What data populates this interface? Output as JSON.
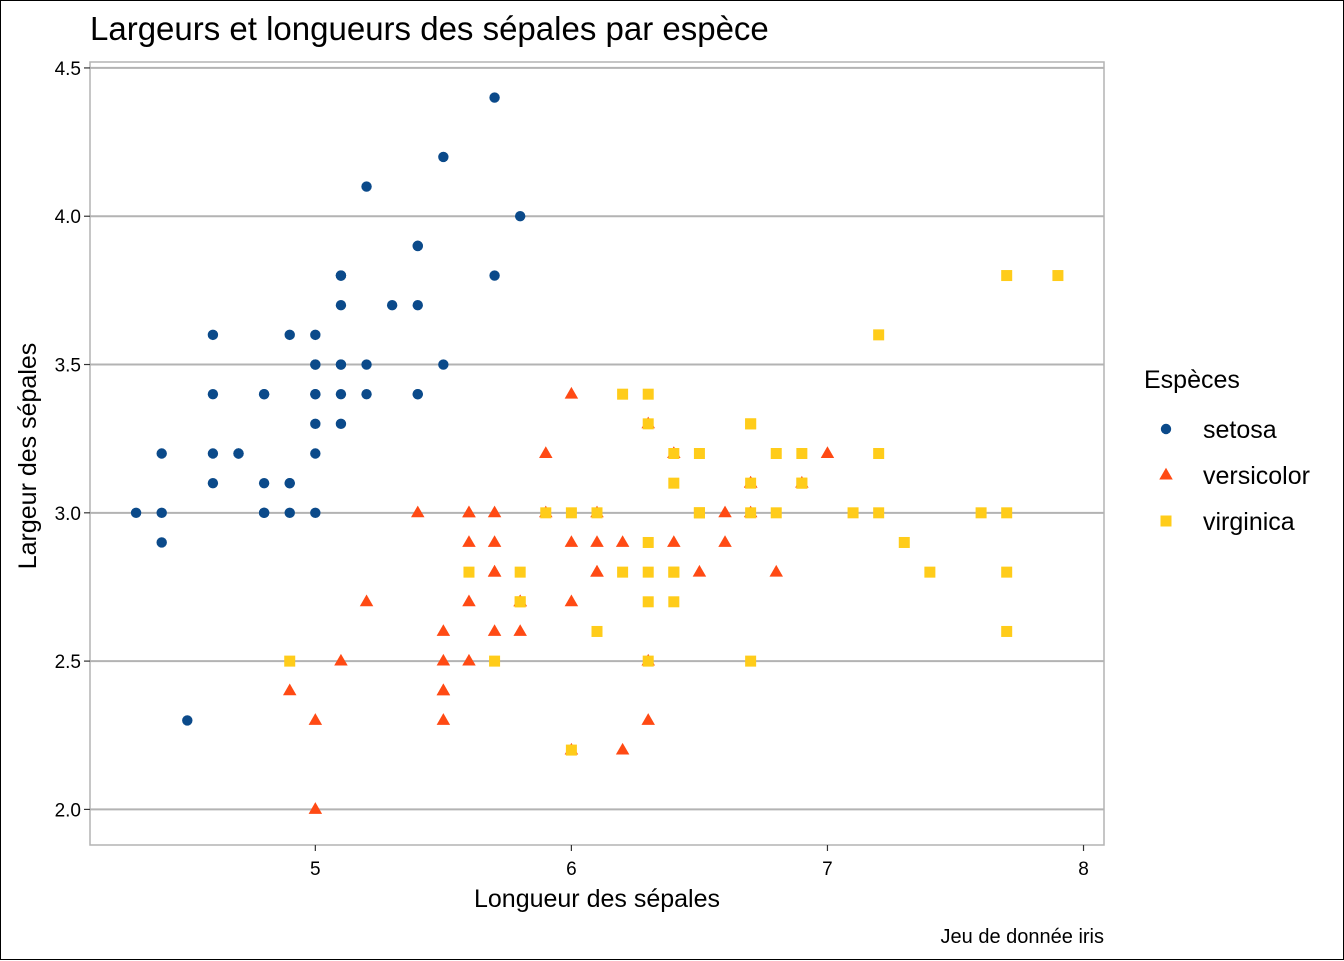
{
  "chart_data": {
    "type": "scatter",
    "title": "Largeurs et longueurs des sépales par espèce",
    "xlabel": "Longueur des sépales",
    "ylabel": "Largeur des sépales",
    "caption": "Jeu de donnée iris",
    "xlim": [
      4.12,
      8.08
    ],
    "ylim": [
      1.88,
      4.52
    ],
    "x_ticks": [
      5,
      6,
      7,
      8
    ],
    "x_tick_labels": [
      "5",
      "6",
      "7",
      "8"
    ],
    "y_ticks": [
      2.0,
      2.5,
      3.0,
      3.5,
      4.0,
      4.5
    ],
    "y_tick_labels": [
      "2.0",
      "2.5",
      "3.0",
      "3.5",
      "4.0",
      "4.5"
    ],
    "grid": "horizontal",
    "legend": {
      "title": "Espèces",
      "placement": "right",
      "entries": [
        "setosa",
        "versicolor",
        "virginica"
      ]
    },
    "series": [
      {
        "name": "setosa",
        "color": "#0b4a8a",
        "shape": "circle",
        "points": [
          [
            5.1,
            3.5
          ],
          [
            4.9,
            3.0
          ],
          [
            4.7,
            3.2
          ],
          [
            4.6,
            3.1
          ],
          [
            5.0,
            3.6
          ],
          [
            5.4,
            3.9
          ],
          [
            4.6,
            3.4
          ],
          [
            5.0,
            3.4
          ],
          [
            4.4,
            2.9
          ],
          [
            4.9,
            3.1
          ],
          [
            5.4,
            3.7
          ],
          [
            4.8,
            3.4
          ],
          [
            4.8,
            3.0
          ],
          [
            4.3,
            3.0
          ],
          [
            5.8,
            4.0
          ],
          [
            5.7,
            4.4
          ],
          [
            5.4,
            3.9
          ],
          [
            5.1,
            3.5
          ],
          [
            5.7,
            3.8
          ],
          [
            5.1,
            3.8
          ],
          [
            5.4,
            3.4
          ],
          [
            5.1,
            3.7
          ],
          [
            4.6,
            3.6
          ],
          [
            5.1,
            3.3
          ],
          [
            4.8,
            3.4
          ],
          [
            5.0,
            3.0
          ],
          [
            5.0,
            3.4
          ],
          [
            5.2,
            3.5
          ],
          [
            5.2,
            3.4
          ],
          [
            4.7,
            3.2
          ],
          [
            4.8,
            3.1
          ],
          [
            5.4,
            3.4
          ],
          [
            5.2,
            4.1
          ],
          [
            5.5,
            4.2
          ],
          [
            4.9,
            3.1
          ],
          [
            5.0,
            3.2
          ],
          [
            5.5,
            3.5
          ],
          [
            4.9,
            3.6
          ],
          [
            4.4,
            3.0
          ],
          [
            5.1,
            3.4
          ],
          [
            5.0,
            3.5
          ],
          [
            4.5,
            2.3
          ],
          [
            4.4,
            3.2
          ],
          [
            5.0,
            3.5
          ],
          [
            5.1,
            3.8
          ],
          [
            4.8,
            3.0
          ],
          [
            5.1,
            3.8
          ],
          [
            4.6,
            3.2
          ],
          [
            5.3,
            3.7
          ],
          [
            5.0,
            3.3
          ]
        ]
      },
      {
        "name": "versicolor",
        "color": "#ff4a14",
        "shape": "triangle",
        "points": [
          [
            7.0,
            3.2
          ],
          [
            6.4,
            3.2
          ],
          [
            6.9,
            3.1
          ],
          [
            5.5,
            2.3
          ],
          [
            6.5,
            2.8
          ],
          [
            5.7,
            2.8
          ],
          [
            6.3,
            3.3
          ],
          [
            4.9,
            2.4
          ],
          [
            6.6,
            2.9
          ],
          [
            5.2,
            2.7
          ],
          [
            5.0,
            2.0
          ],
          [
            5.9,
            3.0
          ],
          [
            6.0,
            2.2
          ],
          [
            6.1,
            2.9
          ],
          [
            5.6,
            2.9
          ],
          [
            6.7,
            3.1
          ],
          [
            5.6,
            3.0
          ],
          [
            5.8,
            2.7
          ],
          [
            6.2,
            2.2
          ],
          [
            5.6,
            2.5
          ],
          [
            5.9,
            3.2
          ],
          [
            6.1,
            2.8
          ],
          [
            6.3,
            2.5
          ],
          [
            6.1,
            2.8
          ],
          [
            6.4,
            2.9
          ],
          [
            6.6,
            3.0
          ],
          [
            6.8,
            2.8
          ],
          [
            6.7,
            3.0
          ],
          [
            6.0,
            2.9
          ],
          [
            5.7,
            2.6
          ],
          [
            5.5,
            2.4
          ],
          [
            5.5,
            2.4
          ],
          [
            5.8,
            2.7
          ],
          [
            6.0,
            2.7
          ],
          [
            5.4,
            3.0
          ],
          [
            6.0,
            3.4
          ],
          [
            6.7,
            3.1
          ],
          [
            6.3,
            2.3
          ],
          [
            5.6,
            3.0
          ],
          [
            5.5,
            2.5
          ],
          [
            5.5,
            2.6
          ],
          [
            6.1,
            3.0
          ],
          [
            5.8,
            2.6
          ],
          [
            5.0,
            2.3
          ],
          [
            5.6,
            2.7
          ],
          [
            5.7,
            3.0
          ],
          [
            5.7,
            2.9
          ],
          [
            6.2,
            2.9
          ],
          [
            5.1,
            2.5
          ],
          [
            5.7,
            2.8
          ]
        ]
      },
      {
        "name": "virginica",
        "color": "#ffcc1a",
        "shape": "square",
        "points": [
          [
            6.3,
            3.3
          ],
          [
            5.8,
            2.7
          ],
          [
            7.1,
            3.0
          ],
          [
            6.3,
            2.9
          ],
          [
            6.5,
            3.0
          ],
          [
            7.6,
            3.0
          ],
          [
            4.9,
            2.5
          ],
          [
            7.3,
            2.9
          ],
          [
            6.7,
            2.5
          ],
          [
            7.2,
            3.6
          ],
          [
            6.5,
            3.2
          ],
          [
            6.4,
            2.7
          ],
          [
            6.8,
            3.0
          ],
          [
            5.7,
            2.5
          ],
          [
            5.8,
            2.8
          ],
          [
            6.4,
            3.2
          ],
          [
            6.5,
            3.0
          ],
          [
            7.7,
            3.8
          ],
          [
            7.7,
            2.6
          ],
          [
            6.0,
            2.2
          ],
          [
            6.9,
            3.2
          ],
          [
            5.6,
            2.8
          ],
          [
            7.7,
            2.8
          ],
          [
            6.3,
            2.7
          ],
          [
            6.7,
            3.3
          ],
          [
            7.2,
            3.2
          ],
          [
            6.2,
            2.8
          ],
          [
            6.1,
            3.0
          ],
          [
            6.4,
            2.8
          ],
          [
            7.2,
            3.0
          ],
          [
            7.4,
            2.8
          ],
          [
            7.9,
            3.8
          ],
          [
            6.4,
            2.8
          ],
          [
            6.3,
            2.8
          ],
          [
            6.1,
            2.6
          ],
          [
            7.7,
            3.0
          ],
          [
            6.3,
            3.4
          ],
          [
            6.4,
            3.1
          ],
          [
            6.0,
            3.0
          ],
          [
            6.9,
            3.1
          ],
          [
            6.7,
            3.1
          ],
          [
            6.9,
            3.1
          ],
          [
            5.8,
            2.7
          ],
          [
            6.8,
            3.2
          ],
          [
            6.7,
            3.3
          ],
          [
            6.7,
            3.0
          ],
          [
            6.3,
            2.5
          ],
          [
            6.5,
            3.0
          ],
          [
            6.2,
            3.4
          ],
          [
            5.9,
            3.0
          ]
        ]
      }
    ]
  }
}
